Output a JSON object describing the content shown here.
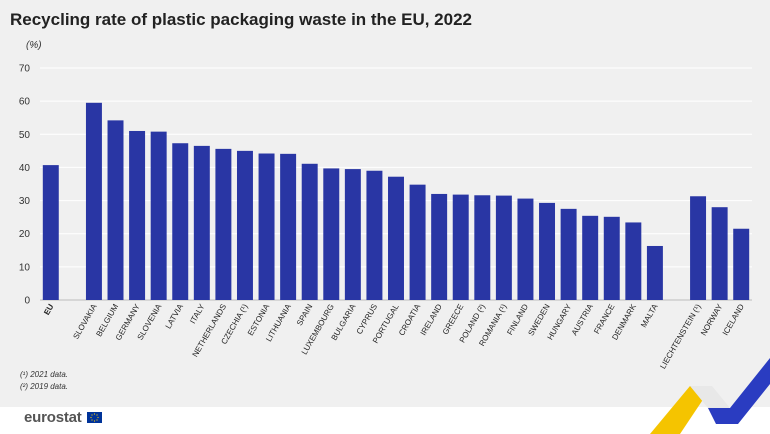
{
  "title": "Recycling rate of plastic packaging waste in the EU, 2022",
  "unit": "(%)",
  "notes": [
    "(¹) 2021 data.",
    "(²) 2019 data."
  ],
  "logo": {
    "text": "eurostat",
    "flag_icon": "eu-flag-icon"
  },
  "colors": {
    "bar": "#2936a4",
    "background": "#f0f0f0",
    "grid": "#ffffff",
    "accent_yellow": "#f5c400",
    "accent_blue": "#2a3cc1"
  },
  "chart_data": {
    "type": "bar",
    "title": "Recycling rate of plastic packaging waste in the EU, 2022",
    "ylabel": "(%)",
    "ylim": [
      0,
      70
    ],
    "yticks": [
      0,
      10,
      20,
      30,
      40,
      50,
      60,
      70
    ],
    "grid": true,
    "categories": [
      "EU",
      "Slovakia",
      "Belgium",
      "Germany",
      "Slovenia",
      "Latvia",
      "Italy",
      "Netherlands",
      "Czechia (¹)",
      "Estonia",
      "Lithuania",
      "Spain",
      "Luxembourg",
      "Bulgaria",
      "Cyprus",
      "Portugal",
      "Croatia",
      "Ireland",
      "Greece",
      "Poland (²)",
      "Romania (¹)",
      "Finland",
      "Sweden",
      "Hungary",
      "Austria",
      "France",
      "Denmark",
      "Malta",
      "Liechtenstein (¹)",
      "Norway",
      "Iceland"
    ],
    "values": [
      40.7,
      59.5,
      54.2,
      51.0,
      50.8,
      47.3,
      46.5,
      45.6,
      45.0,
      44.2,
      44.1,
      41.1,
      39.7,
      39.5,
      39.0,
      37.2,
      34.8,
      32.0,
      31.8,
      31.6,
      31.5,
      30.6,
      29.3,
      27.5,
      25.4,
      25.1,
      23.4,
      16.3,
      31.3,
      28.0,
      21.5
    ]
  }
}
